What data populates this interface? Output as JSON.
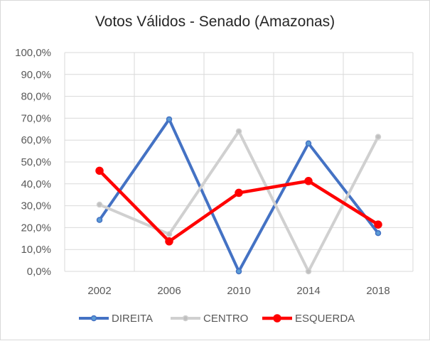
{
  "chart_data": {
    "type": "line",
    "title": "Votos Válidos  - Senado (Amazonas)",
    "categories": [
      "2002",
      "2006",
      "2010",
      "2014",
      "2018"
    ],
    "y_ticks": [
      "0,0%",
      "10,0%",
      "20,0%",
      "30,0%",
      "40,0%",
      "50,0%",
      "60,0%",
      "70,0%",
      "80,0%",
      "90,0%",
      "100,0%"
    ],
    "ylim": [
      0,
      100
    ],
    "grid": true,
    "legend_position": "bottom",
    "series": [
      {
        "name": "DIREITA",
        "values": [
          23.5,
          69.5,
          0.0,
          58.5,
          17.5
        ],
        "color": "#4472c4",
        "marker_fill": "#5b9bd5",
        "width": 4,
        "marker": 3.5
      },
      {
        "name": "CENTRO",
        "values": [
          30.5,
          17.0,
          64.0,
          0.0,
          61.5
        ],
        "color": "#d0d0d0",
        "marker_fill": "#bfbfbf",
        "width": 4,
        "marker": 3.5
      },
      {
        "name": "ESQUERDA",
        "values": [
          46.0,
          13.7,
          35.9,
          41.3,
          21.4
        ],
        "color": "#ff0000",
        "marker_fill": "#ff0000",
        "width": 4.5,
        "marker": 5
      }
    ]
  }
}
